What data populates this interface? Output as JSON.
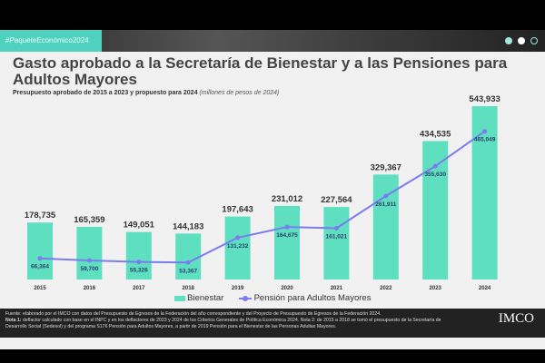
{
  "header": {
    "hashtag": "#PaqueteEconómico2024",
    "logo": "IMCO"
  },
  "title": "Gasto aprobado a la Secretaría de Bienestar y a las Pensiones para Adultos Mayores",
  "subtitle": "Presupuesto aprobado de 2015 a 2023 y propuesto para 2024",
  "subtitle_units": "(millones de pesos de 2024)",
  "footer": {
    "fuente": "Fuente: elaborado por el IMCO con datos del Presupuesto de Egresos de la Federación del año correspondiente y del Proyecto de Presupuesto de Egresos de la Federación 2024.",
    "nota1_label": "Nota 1:",
    "nota1": " deflactor calculado con base en el INPC y en los deflactores de 2023 y 2024 de los Criterios Generales de Política Económica 2024.  Nota 2: de 2015 a 2018 se tomó el presupuesto de la Secretaría de Desarrollo Social (Sedesol) y del programa S176 Pensión para Adultos Mayores, a partir de 2019 Pensión para el Bienestar de las Personas Adultas Mayores."
  },
  "chart_data": {
    "type": "bar+line",
    "categories": [
      "2015",
      "2016",
      "2017",
      "2018",
      "2019",
      "2020",
      "2021",
      "2022",
      "2023",
      "2024"
    ],
    "series": [
      {
        "name": "Bienestar",
        "type": "bar",
        "color": "#5ee0c0",
        "values": [
          178735,
          165359,
          149051,
          144183,
          197643,
          231012,
          227564,
          329367,
          434535,
          543933
        ],
        "labels": [
          "178,735",
          "165,359",
          "149,051",
          "144,183",
          "197,643",
          "231,012",
          "227,564",
          "329,367",
          "434,535",
          "543,933"
        ]
      },
      {
        "name": "Pensión para Adultos Mayores",
        "type": "line",
        "color": "#7b7cf0",
        "values": [
          66364,
          59700,
          55326,
          53367,
          131232,
          164675,
          161021,
          261911,
          355630,
          465049
        ],
        "labels": [
          "66,364",
          "59,700",
          "55,326",
          "53,367",
          "131,232",
          "164,675",
          "161,021",
          "261,911",
          "355,630",
          "465,049"
        ]
      }
    ],
    "ylim": [
      0,
      543933
    ],
    "legend": "bottom"
  }
}
